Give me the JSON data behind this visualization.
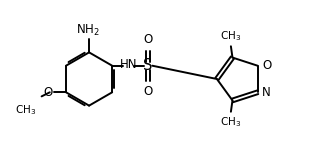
{
  "bg_color": "#ffffff",
  "line_color": "#000000",
  "line_width": 1.4,
  "font_size": 8.5,
  "fig_width": 3.16,
  "fig_height": 1.58,
  "dpi": 100,
  "xlim": [
    0,
    10
  ],
  "ylim": [
    0,
    5
  ]
}
